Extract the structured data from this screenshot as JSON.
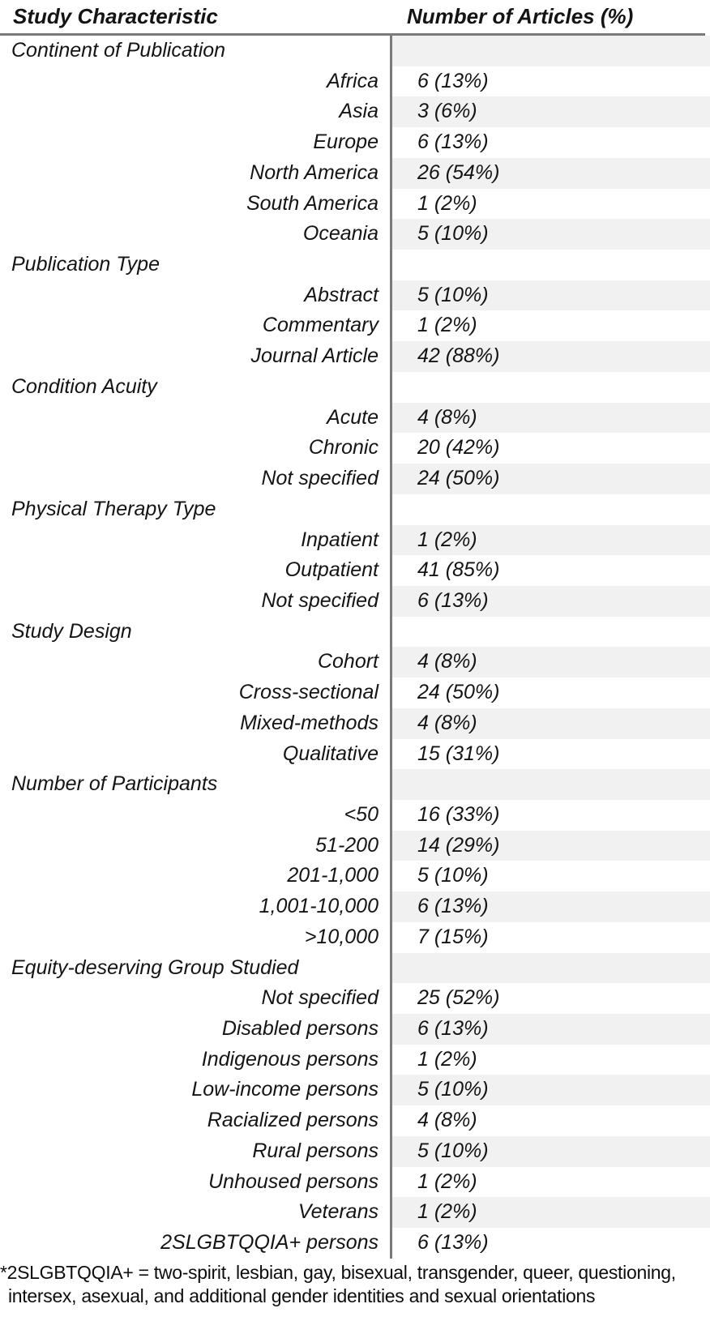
{
  "colors": {
    "stripe": "#f0f1f0",
    "rule": "#7a7a7a",
    "divider": "#7a7a7a",
    "text": "#141414"
  },
  "table": {
    "columns": [
      "Study Characteristic",
      "Number of Articles (%)"
    ],
    "rows": [
      {
        "section": true,
        "label": "Continent of Publication",
        "value": ""
      },
      {
        "section": false,
        "label": "Africa",
        "value": "6 (13%)"
      },
      {
        "section": false,
        "label": "Asia",
        "value": "3 (6%)"
      },
      {
        "section": false,
        "label": "Europe",
        "value": "6 (13%)"
      },
      {
        "section": false,
        "label": "North America",
        "value": "26 (54%)"
      },
      {
        "section": false,
        "label": "South America",
        "value": "1 (2%)"
      },
      {
        "section": false,
        "label": "Oceania",
        "value": "5 (10%)"
      },
      {
        "section": true,
        "label": "Publication Type",
        "value": ""
      },
      {
        "section": false,
        "label": "Abstract",
        "value": "5 (10%)"
      },
      {
        "section": false,
        "label": "Commentary",
        "value": "1 (2%)"
      },
      {
        "section": false,
        "label": "Journal Article",
        "value": "42 (88%)"
      },
      {
        "section": true,
        "label": "Condition Acuity",
        "value": ""
      },
      {
        "section": false,
        "label": "Acute",
        "value": "4 (8%)"
      },
      {
        "section": false,
        "label": "Chronic",
        "value": "20 (42%)"
      },
      {
        "section": false,
        "label": "Not specified",
        "value": "24 (50%)"
      },
      {
        "section": true,
        "label": "Physical Therapy Type",
        "value": ""
      },
      {
        "section": false,
        "label": "Inpatient",
        "value": "1 (2%)"
      },
      {
        "section": false,
        "label": "Outpatient",
        "value": "41 (85%)"
      },
      {
        "section": false,
        "label": "Not specified",
        "value": "6 (13%)"
      },
      {
        "section": true,
        "label": "Study Design",
        "value": ""
      },
      {
        "section": false,
        "label": "Cohort",
        "value": "4 (8%)"
      },
      {
        "section": false,
        "label": "Cross-sectional",
        "value": "24 (50%)"
      },
      {
        "section": false,
        "label": "Mixed-methods",
        "value": "4 (8%)"
      },
      {
        "section": false,
        "label": "Qualitative",
        "value": "15 (31%)"
      },
      {
        "section": true,
        "label": "Number of Participants",
        "value": ""
      },
      {
        "section": false,
        "label": "<50",
        "value": "16 (33%)"
      },
      {
        "section": false,
        "label": "51-200",
        "value": "14 (29%)"
      },
      {
        "section": false,
        "label": "201-1,000",
        "value": "5 (10%)"
      },
      {
        "section": false,
        "label": "1,001-10,000",
        "value": "6 (13%)"
      },
      {
        "section": false,
        "label": ">10,000",
        "value": "7 (15%)"
      },
      {
        "section": true,
        "label": "Equity-deserving Group Studied",
        "value": ""
      },
      {
        "section": false,
        "label": "Not specified",
        "value": "25 (52%)"
      },
      {
        "section": false,
        "label": "Disabled persons",
        "value": "6 (13%)"
      },
      {
        "section": false,
        "label": "Indigenous persons",
        "value": "1 (2%)"
      },
      {
        "section": false,
        "label": "Low-income persons",
        "value": "5 (10%)"
      },
      {
        "section": false,
        "label": "Racialized persons",
        "value": "4 (8%)"
      },
      {
        "section": false,
        "label": "Rural persons",
        "value": "5 (10%)"
      },
      {
        "section": false,
        "label": "Unhoused persons",
        "value": "1 (2%)"
      },
      {
        "section": false,
        "label": "Veterans",
        "value": "1 (2%)"
      },
      {
        "section": false,
        "label": "2SLGBTQQIA+ persons",
        "value": "6 (13%)"
      }
    ],
    "footnote_lines": [
      "*2SLGBTQQIA+ = two-spirit, lesbian, gay, bisexual, transgender, queer, questioning,",
      "intersex, asexual, and additional gender identities and sexual orientations"
    ]
  }
}
